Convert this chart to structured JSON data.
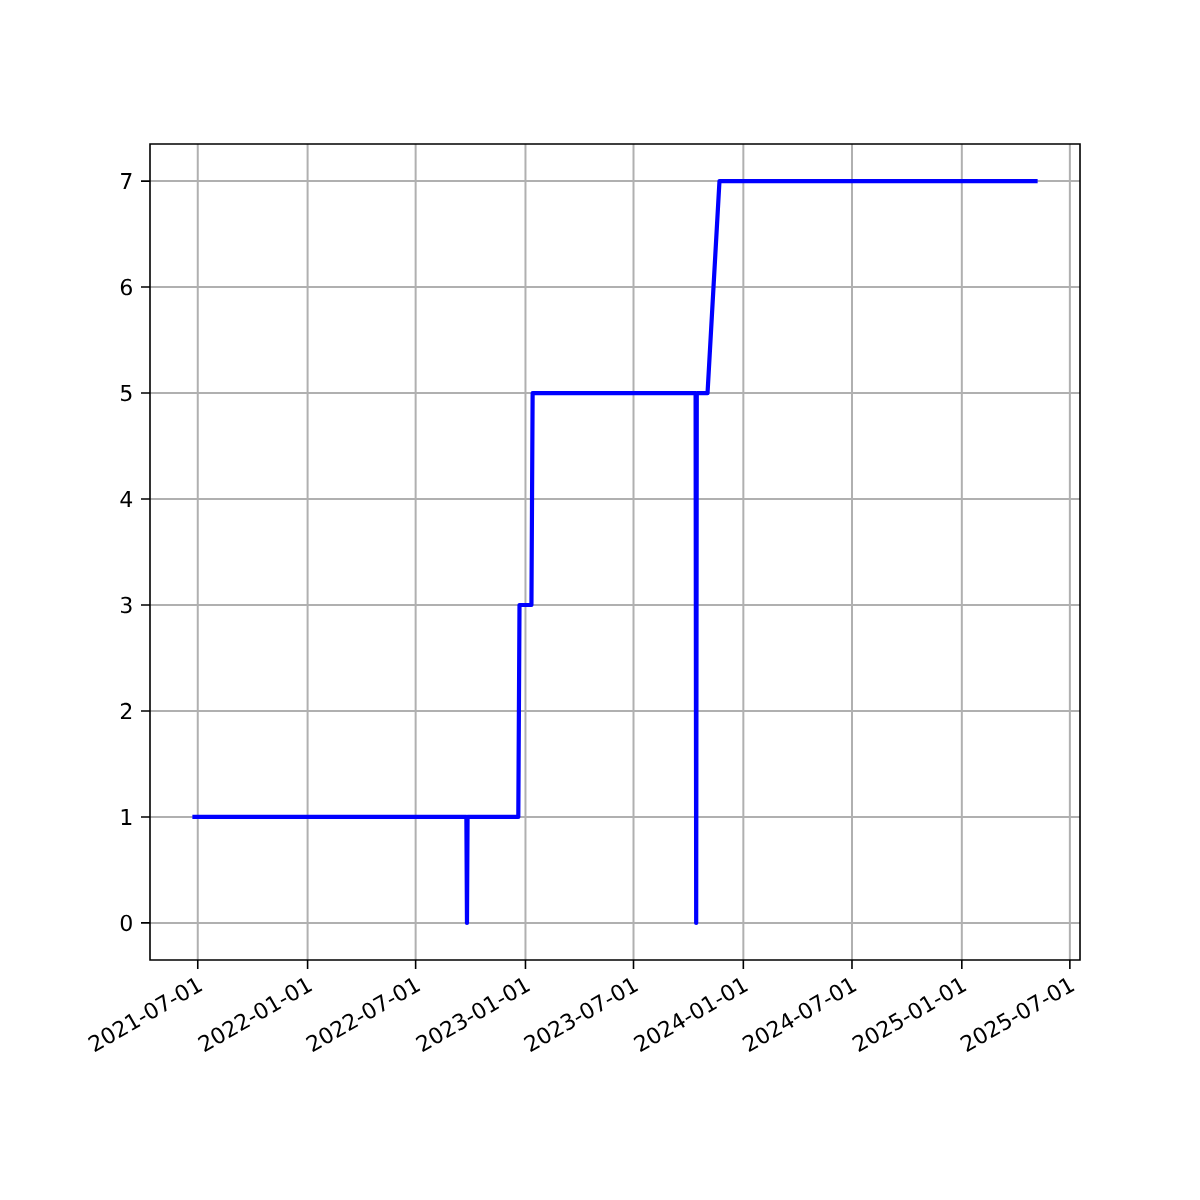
{
  "chart_data": {
    "type": "line",
    "x": [
      "2021-06-22",
      "2022-09-24",
      "2022-09-25",
      "2022-09-26",
      "2022-12-20",
      "2022-12-22",
      "2023-01-11",
      "2023-01-13",
      "2023-10-13",
      "2023-10-14",
      "2023-10-15",
      "2023-11-02",
      "2023-11-22",
      "2025-05-08"
    ],
    "series": [
      {
        "color": "#0000ff",
        "values": [
          1,
          1,
          0,
          1,
          1,
          3,
          3,
          5,
          5,
          0,
          5,
          5,
          7,
          7
        ]
      }
    ],
    "xlim": [
      "2021-04-12",
      "2025-07-18"
    ],
    "xticks": [
      "2021-07-01",
      "2022-01-01",
      "2022-07-01",
      "2023-01-01",
      "2023-07-01",
      "2024-01-01",
      "2024-07-01",
      "2025-01-01",
      "2025-07-01"
    ],
    "ylim": [
      -0.35,
      7.35
    ],
    "yticks": [
      0,
      1,
      2,
      3,
      4,
      5,
      6,
      7
    ],
    "grid": true,
    "marker": "none",
    "line_style": "solid"
  }
}
